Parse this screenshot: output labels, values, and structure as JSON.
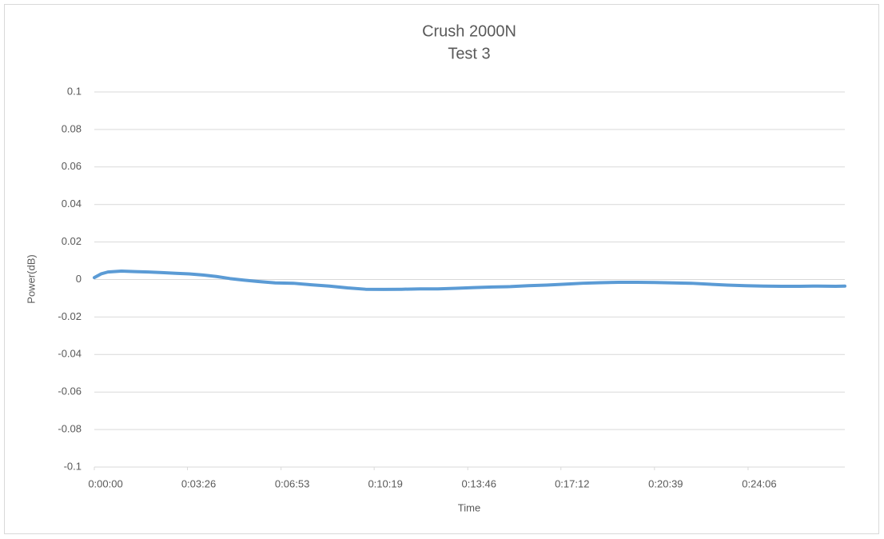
{
  "chart_data": {
    "type": "line",
    "title": "Crush 2000N",
    "subtitle": "Test 3",
    "x_label": "Time",
    "y_label": "Power(dB)",
    "x": [
      0,
      15,
      30,
      60,
      90,
      120,
      150,
      180,
      210,
      240,
      270,
      300,
      330,
      360,
      400,
      440,
      480,
      520,
      560,
      600,
      640,
      680,
      720,
      760,
      800,
      840,
      880,
      920,
      960,
      1000,
      1040,
      1080,
      1120,
      1160,
      1200,
      1240,
      1280,
      1320,
      1360,
      1400,
      1440,
      1480,
      1520,
      1560,
      1600,
      1640,
      1660
    ],
    "values": [
      0.001,
      0.003,
      0.004,
      0.0045,
      0.0042,
      0.004,
      0.0037,
      0.0033,
      0.003,
      0.0024,
      0.0016,
      0.0005,
      -0.0003,
      -0.001,
      -0.0018,
      -0.002,
      -0.0028,
      -0.0035,
      -0.0045,
      -0.0052,
      -0.0053,
      -0.0052,
      -0.005,
      -0.005,
      -0.0047,
      -0.0043,
      -0.004,
      -0.0038,
      -0.0033,
      -0.003,
      -0.0025,
      -0.002,
      -0.0017,
      -0.0015,
      -0.0015,
      -0.0016,
      -0.0018,
      -0.002,
      -0.0025,
      -0.003,
      -0.0033,
      -0.0035,
      -0.0036,
      -0.0036,
      -0.0035,
      -0.0036,
      -0.0035
    ],
    "color": "#5b9bd5",
    "xlim": [
      0,
      1660
    ],
    "xticks": [
      {
        "value": 0,
        "label": "0:00:00"
      },
      {
        "value": 206,
        "label": "0:03:26"
      },
      {
        "value": 413,
        "label": "0:06:53"
      },
      {
        "value": 619,
        "label": "0:10:19"
      },
      {
        "value": 826,
        "label": "0:13:46"
      },
      {
        "value": 1032,
        "label": "0:17:12"
      },
      {
        "value": 1239,
        "label": "0:20:39"
      },
      {
        "value": 1446,
        "label": "0:24:06"
      }
    ],
    "ylim": [
      -0.1,
      0.1
    ],
    "yticks": [
      -0.1,
      -0.08,
      -0.06,
      -0.04,
      -0.02,
      0,
      0.02,
      0.04,
      0.06,
      0.08,
      0.1
    ],
    "grid": true
  }
}
